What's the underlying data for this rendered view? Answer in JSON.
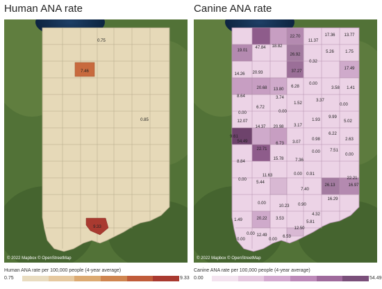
{
  "human": {
    "title": "Human ANA rate",
    "attribution": "© 2022 Mapbox © OpenStreetMap",
    "legend_title": "Human ANA rate per 100,000 people (4-year average)",
    "legend_min": "0.75",
    "legend_max": "9.33",
    "legend_colors": [
      "#e9dcc0",
      "#e6c9a0",
      "#dcaa72",
      "#cf8550",
      "#c05c3a",
      "#a93a30"
    ],
    "labels": [
      "0.75",
      "7.46",
      "0.85",
      "9.33"
    ]
  },
  "canine": {
    "title": "Canine ANA rate",
    "attribution": "© 2022 Mapbox © OpenStreetMap",
    "legend_title": "Canine ANA rate per 100,000 people (4-year average)",
    "legend_min": "0.00",
    "legend_max": "54.49",
    "legend_colors": [
      "#f3e3ef",
      "#e6c9e0",
      "#d4aad0",
      "#bd8ab9",
      "#9f6a9c",
      "#7a4f7a"
    ],
    "labels": [
      "22.70",
      "17.36",
      "13.77",
      "11.37",
      "19.01",
      "47.84",
      "18.82",
      "5.26",
      "1.75",
      "26.92",
      "0.32",
      "14.26",
      "20.93",
      "37.27",
      "17.49",
      "20.68",
      "13.80",
      "6.28",
      "0.00",
      "3.58",
      "1.41",
      "8.64",
      "3.74",
      "1.52",
      "3.37",
      "6.72",
      "0.00",
      "0.00",
      "0.00",
      "12.07",
      "1.93",
      "9.99",
      "14.37",
      "20.98",
      "3.17",
      "5.02",
      "54.49",
      "9.61",
      "6.73",
      "3.07",
      "0.98",
      "6.22",
      "22.71",
      "2.63",
      "8.84",
      "15.78",
      "7.36",
      "0.00",
      "7.51",
      "0.00",
      "11.63",
      "0.00",
      "0.91",
      "5.44",
      "26.13",
      "22.21",
      "7.40",
      "16.97",
      "0.00",
      "0.00",
      "16.29",
      "10.23",
      "0.90",
      "1.49",
      "20.22",
      "3.53",
      "4.32",
      "5.81",
      "12.50",
      "0.00",
      "12.49",
      "0.00",
      "6.53",
      "0.00"
    ]
  }
}
